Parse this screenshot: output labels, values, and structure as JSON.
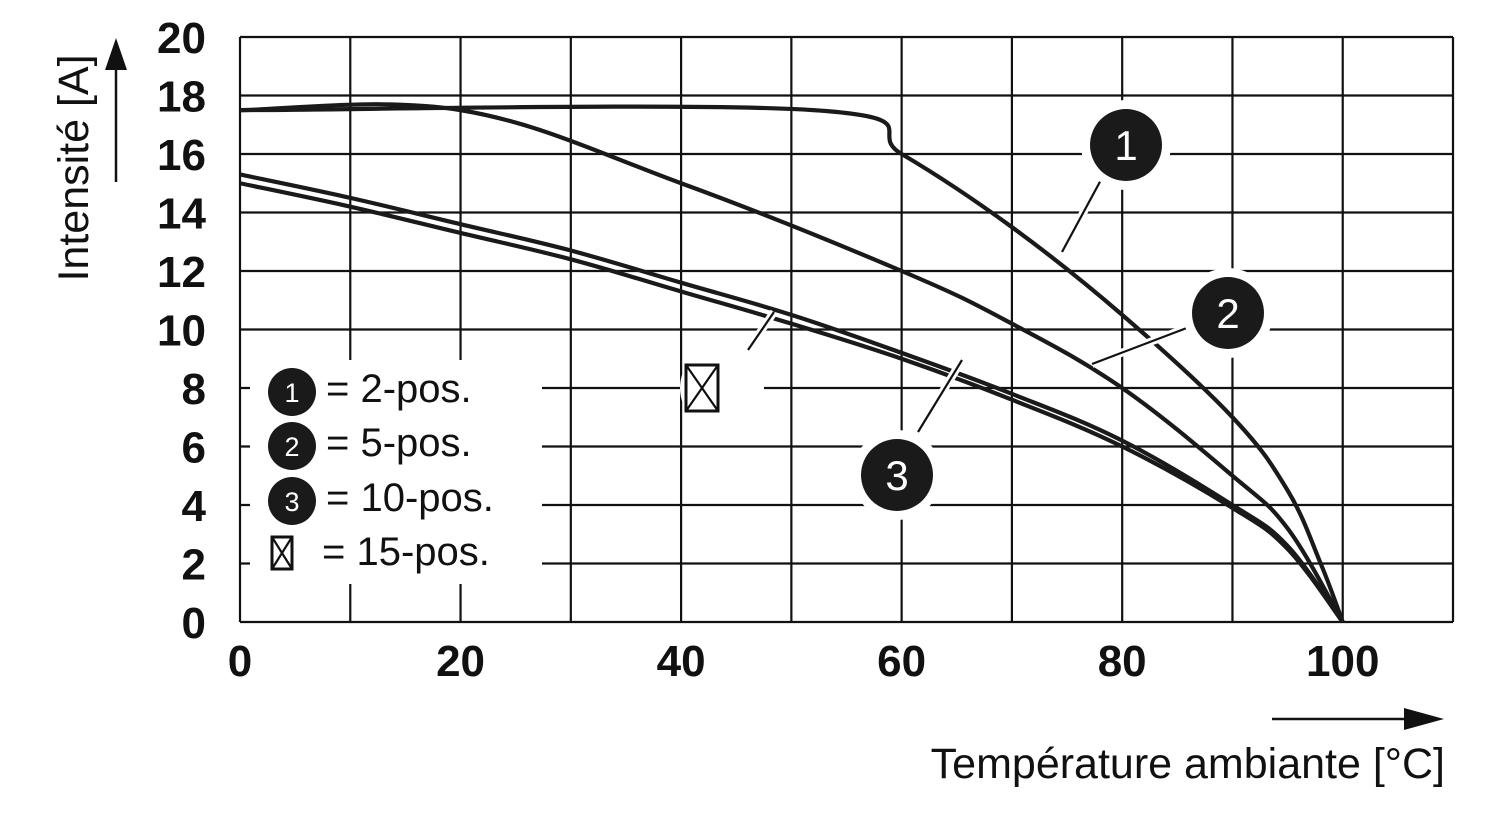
{
  "chart_data": {
    "type": "line",
    "xlabel": "Température ambiante [°C]",
    "ylabel": "Intensité [A]",
    "xlim": [
      0,
      110
    ],
    "ylim": [
      0,
      20
    ],
    "x_ticks": [
      "0",
      "20",
      "40",
      "60",
      "80",
      "100"
    ],
    "y_ticks": [
      "0",
      "2",
      "4",
      "6",
      "8",
      "10",
      "12",
      "14",
      "16",
      "18",
      "20"
    ],
    "grid": true,
    "legend_position": "bottom-left",
    "series": [
      {
        "marker": "1",
        "x": [
          0,
          52,
          60,
          70,
          80,
          90,
          95,
          98,
          100
        ],
        "y": [
          17.5,
          17.5,
          16.0,
          13.5,
          10.5,
          7.0,
          4.5,
          2.0,
          0
        ]
      },
      {
        "marker": "2",
        "x": [
          0,
          20,
          40,
          60,
          70,
          80,
          90,
          95,
          100
        ],
        "y": [
          17.5,
          17.5,
          15.0,
          12.0,
          10.2,
          8.0,
          5.0,
          3.2,
          0
        ]
      },
      {
        "marker": "3",
        "x": [
          0,
          10,
          20,
          30,
          40,
          50,
          60,
          70,
          80,
          90,
          95,
          100
        ],
        "y": [
          15.3,
          14.5,
          13.6,
          12.7,
          11.6,
          10.5,
          9.2,
          7.8,
          6.2,
          4.0,
          2.6,
          0
        ]
      },
      {
        "marker": "⊠",
        "x": [
          0,
          10,
          20,
          30,
          40,
          50,
          60,
          70,
          80,
          90,
          95,
          100
        ],
        "y": [
          15.0,
          14.2,
          13.3,
          12.4,
          11.3,
          10.2,
          9.0,
          7.6,
          6.0,
          3.9,
          2.5,
          0
        ]
      }
    ],
    "legend": [
      {
        "marker": "1",
        "label": "= 2-pos."
      },
      {
        "marker": "2",
        "label": "= 5-pos."
      },
      {
        "marker": "3",
        "label": "= 10-pos."
      },
      {
        "marker": "⊠",
        "label": "= 15-pos."
      }
    ],
    "colors": {
      "line": "#1a1a1a",
      "grid": "#111111",
      "marker_fill": "#1a1a1a"
    }
  }
}
